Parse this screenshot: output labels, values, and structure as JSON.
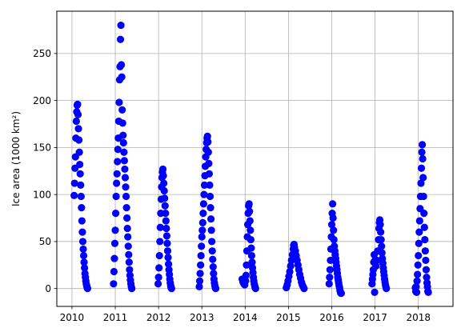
{
  "chart_data": {
    "type": "scatter",
    "ylabel": "Ice area (1000 km²)",
    "xlabel": "",
    "title": "",
    "grid": true,
    "marker_color": "#0000ff",
    "xlim": [
      2009.65,
      2018.8
    ],
    "ylim": [
      -19,
      295
    ],
    "x_ticks": [
      2010,
      2011,
      2012,
      2013,
      2014,
      2015,
      2016,
      2017,
      2018
    ],
    "y_ticks": [
      0,
      50,
      100,
      150,
      200,
      250
    ],
    "seasons": [
      {
        "start": 2010.03,
        "end": 2010.41,
        "points": [
          [
            2010.05,
            99
          ],
          [
            2010.06,
            112
          ],
          [
            2010.07,
            128
          ],
          [
            2010.08,
            140
          ],
          [
            2010.09,
            160
          ],
          [
            2010.1,
            178
          ],
          [
            2010.11,
            188
          ],
          [
            2010.12,
            195
          ],
          [
            2010.13,
            196
          ],
          [
            2010.14,
            185
          ],
          [
            2010.15,
            170
          ],
          [
            2010.16,
            158
          ],
          [
            2010.17,
            145
          ],
          [
            2010.18,
            132
          ],
          [
            2010.19,
            122
          ],
          [
            2010.2,
            110
          ],
          [
            2010.21,
            98
          ],
          [
            2010.22,
            86
          ],
          [
            2010.23,
            72
          ],
          [
            2010.24,
            60
          ],
          [
            2010.25,
            50
          ],
          [
            2010.26,
            42
          ],
          [
            2010.27,
            35
          ],
          [
            2010.28,
            28
          ],
          [
            2010.29,
            22
          ],
          [
            2010.3,
            16
          ],
          [
            2010.31,
            12
          ],
          [
            2010.32,
            8
          ],
          [
            2010.33,
            5
          ],
          [
            2010.34,
            3
          ],
          [
            2010.35,
            1
          ],
          [
            2010.36,
            0
          ]
        ]
      },
      {
        "start": 2010.95,
        "end": 2011.42,
        "points": [
          [
            2010.96,
            5
          ],
          [
            2010.97,
            18
          ],
          [
            2010.98,
            32
          ],
          [
            2010.99,
            48
          ],
          [
            2011.0,
            62
          ],
          [
            2011.01,
            80
          ],
          [
            2011.02,
            98
          ],
          [
            2011.03,
            112
          ],
          [
            2011.04,
            122
          ],
          [
            2011.05,
            135
          ],
          [
            2011.06,
            148
          ],
          [
            2011.07,
            160
          ],
          [
            2011.08,
            178
          ],
          [
            2011.09,
            198
          ],
          [
            2011.1,
            222
          ],
          [
            2011.11,
            236
          ],
          [
            2011.12,
            265
          ],
          [
            2011.13,
            280
          ],
          [
            2011.14,
            238
          ],
          [
            2011.15,
            225
          ],
          [
            2011.16,
            190
          ],
          [
            2011.17,
            176
          ],
          [
            2011.18,
            163
          ],
          [
            2011.19,
            155
          ],
          [
            2011.2,
            145
          ],
          [
            2011.21,
            136
          ],
          [
            2011.22,
            127
          ],
          [
            2011.23,
            118
          ],
          [
            2011.24,
            108
          ],
          [
            2011.25,
            98
          ],
          [
            2011.26,
            86
          ],
          [
            2011.27,
            75
          ],
          [
            2011.28,
            64
          ],
          [
            2011.29,
            55
          ],
          [
            2011.3,
            45
          ],
          [
            2011.31,
            36
          ],
          [
            2011.32,
            28
          ],
          [
            2011.33,
            20
          ],
          [
            2011.34,
            14
          ],
          [
            2011.35,
            9
          ],
          [
            2011.36,
            5
          ],
          [
            2011.37,
            2
          ],
          [
            2011.38,
            0
          ]
        ]
      },
      {
        "start": 2011.98,
        "end": 2012.4,
        "points": [
          [
            2011.99,
            5
          ],
          [
            2012.0,
            12
          ],
          [
            2012.01,
            22
          ],
          [
            2012.02,
            35
          ],
          [
            2012.03,
            50
          ],
          [
            2012.04,
            65
          ],
          [
            2012.05,
            80
          ],
          [
            2012.06,
            95
          ],
          [
            2012.07,
            108
          ],
          [
            2012.08,
            118
          ],
          [
            2012.09,
            124
          ],
          [
            2012.1,
            127
          ],
          [
            2012.11,
            120
          ],
          [
            2012.12,
            112
          ],
          [
            2012.13,
            104
          ],
          [
            2012.14,
            96
          ],
          [
            2012.15,
            88
          ],
          [
            2012.16,
            80
          ],
          [
            2012.17,
            72
          ],
          [
            2012.18,
            64
          ],
          [
            2012.19,
            56
          ],
          [
            2012.2,
            48
          ],
          [
            2012.21,
            40
          ],
          [
            2012.22,
            33
          ],
          [
            2012.23,
            26
          ],
          [
            2012.24,
            20
          ],
          [
            2012.25,
            15
          ],
          [
            2012.26,
            10
          ],
          [
            2012.27,
            6
          ],
          [
            2012.28,
            3
          ],
          [
            2012.29,
            1
          ],
          [
            2012.3,
            0
          ]
        ]
      },
      {
        "start": 2012.93,
        "end": 2013.44,
        "points": [
          [
            2012.94,
            2
          ],
          [
            2012.95,
            8
          ],
          [
            2012.96,
            16
          ],
          [
            2012.97,
            25
          ],
          [
            2012.98,
            35
          ],
          [
            2012.99,
            45
          ],
          [
            2013.0,
            55
          ],
          [
            2013.01,
            62
          ],
          [
            2013.02,
            70
          ],
          [
            2013.03,
            80
          ],
          [
            2013.04,
            90
          ],
          [
            2013.05,
            100
          ],
          [
            2013.06,
            110
          ],
          [
            2013.07,
            120
          ],
          [
            2013.08,
            130
          ],
          [
            2013.09,
            140
          ],
          [
            2013.1,
            148
          ],
          [
            2013.11,
            155
          ],
          [
            2013.12,
            160
          ],
          [
            2013.13,
            162
          ],
          [
            2013.14,
            156
          ],
          [
            2013.15,
            145
          ],
          [
            2013.16,
            133
          ],
          [
            2013.17,
            122
          ],
          [
            2013.18,
            110
          ],
          [
            2013.19,
            98
          ],
          [
            2013.2,
            86
          ],
          [
            2013.21,
            74
          ],
          [
            2013.22,
            62
          ],
          [
            2013.23,
            50
          ],
          [
            2013.24,
            40
          ],
          [
            2013.25,
            31
          ],
          [
            2013.26,
            23
          ],
          [
            2013.27,
            16
          ],
          [
            2013.28,
            10
          ],
          [
            2013.29,
            6
          ],
          [
            2013.3,
            3
          ],
          [
            2013.31,
            1
          ],
          [
            2013.32,
            0
          ]
        ]
      },
      {
        "start": 2013.92,
        "end": 2014.42,
        "points": [
          [
            2013.93,
            10
          ],
          [
            2013.95,
            7
          ],
          [
            2013.97,
            5
          ],
          [
            2013.99,
            4
          ],
          [
            2014.01,
            8
          ],
          [
            2014.02,
            14
          ],
          [
            2014.03,
            25
          ],
          [
            2014.04,
            40
          ],
          [
            2014.05,
            55
          ],
          [
            2014.06,
            68
          ],
          [
            2014.07,
            80
          ],
          [
            2014.08,
            88
          ],
          [
            2014.09,
            90
          ],
          [
            2014.1,
            82
          ],
          [
            2014.11,
            72
          ],
          [
            2014.12,
            62
          ],
          [
            2014.13,
            52
          ],
          [
            2014.14,
            43
          ],
          [
            2014.15,
            35
          ],
          [
            2014.16,
            28
          ],
          [
            2014.17,
            22
          ],
          [
            2014.18,
            17
          ],
          [
            2014.19,
            12
          ],
          [
            2014.2,
            8
          ],
          [
            2014.21,
            5
          ],
          [
            2014.22,
            3
          ],
          [
            2014.23,
            1
          ],
          [
            2014.24,
            0
          ]
        ]
      },
      {
        "start": 2014.93,
        "end": 2015.4,
        "points": [
          [
            2014.95,
            1
          ],
          [
            2014.97,
            4
          ],
          [
            2014.99,
            8
          ],
          [
            2015.01,
            13
          ],
          [
            2015.03,
            18
          ],
          [
            2015.05,
            24
          ],
          [
            2015.07,
            30
          ],
          [
            2015.09,
            36
          ],
          [
            2015.11,
            42
          ],
          [
            2015.12,
            46
          ],
          [
            2015.13,
            47
          ],
          [
            2015.14,
            44
          ],
          [
            2015.16,
            40
          ],
          [
            2015.18,
            35
          ],
          [
            2015.2,
            30
          ],
          [
            2015.22,
            25
          ],
          [
            2015.24,
            20
          ],
          [
            2015.26,
            15
          ],
          [
            2015.28,
            11
          ],
          [
            2015.3,
            7
          ],
          [
            2015.32,
            4
          ],
          [
            2015.34,
            2
          ],
          [
            2015.36,
            0
          ]
        ]
      },
      {
        "start": 2015.93,
        "end": 2016.4,
        "points": [
          [
            2015.94,
            5
          ],
          [
            2015.95,
            12
          ],
          [
            2015.96,
            20
          ],
          [
            2015.97,
            30
          ],
          [
            2015.98,
            42
          ],
          [
            2015.99,
            55
          ],
          [
            2016.0,
            68
          ],
          [
            2016.01,
            80
          ],
          [
            2016.02,
            90
          ],
          [
            2016.03,
            75
          ],
          [
            2016.04,
            62
          ],
          [
            2016.05,
            52
          ],
          [
            2016.06,
            45
          ],
          [
            2016.07,
            40
          ],
          [
            2016.08,
            36
          ],
          [
            2016.09,
            32
          ],
          [
            2016.1,
            28
          ],
          [
            2016.11,
            24
          ],
          [
            2016.12,
            20
          ],
          [
            2016.13,
            16
          ],
          [
            2016.14,
            12
          ],
          [
            2016.15,
            9
          ],
          [
            2016.16,
            6
          ],
          [
            2016.17,
            3
          ],
          [
            2016.18,
            1
          ],
          [
            2016.19,
            -2
          ],
          [
            2016.2,
            -4
          ],
          [
            2016.21,
            -5
          ],
          [
            2016.22,
            -5
          ]
        ]
      },
      {
        "start": 2016.92,
        "end": 2017.42,
        "points": [
          [
            2016.93,
            5
          ],
          [
            2016.94,
            10
          ],
          [
            2016.95,
            15
          ],
          [
            2016.96,
            20
          ],
          [
            2016.97,
            28
          ],
          [
            2016.98,
            36
          ],
          [
            2016.99,
            -4
          ],
          [
            2017.0,
            30
          ],
          [
            2017.02,
            24
          ],
          [
            2017.04,
            30
          ],
          [
            2017.06,
            40
          ],
          [
            2017.08,
            52
          ],
          [
            2017.09,
            64
          ],
          [
            2017.1,
            70
          ],
          [
            2017.11,
            73
          ],
          [
            2017.12,
            68
          ],
          [
            2017.13,
            60
          ],
          [
            2017.14,
            52
          ],
          [
            2017.15,
            45
          ],
          [
            2017.16,
            38
          ],
          [
            2017.17,
            32
          ],
          [
            2017.18,
            27
          ],
          [
            2017.19,
            22
          ],
          [
            2017.2,
            18
          ],
          [
            2017.21,
            14
          ],
          [
            2017.22,
            10
          ],
          [
            2017.23,
            7
          ],
          [
            2017.24,
            4
          ],
          [
            2017.25,
            2
          ],
          [
            2017.26,
            0
          ]
        ]
      },
      {
        "start": 2017.92,
        "end": 2018.42,
        "points": [
          [
            2017.93,
            1
          ],
          [
            2017.94,
            -3
          ],
          [
            2017.95,
            2
          ],
          [
            2017.96,
            -4
          ],
          [
            2017.97,
            8
          ],
          [
            2017.98,
            15
          ],
          [
            2017.99,
            25
          ],
          [
            2018.0,
            35
          ],
          [
            2018.01,
            48
          ],
          [
            2018.02,
            60
          ],
          [
            2018.03,
            72
          ],
          [
            2018.04,
            85
          ],
          [
            2018.05,
            98
          ],
          [
            2018.06,
            112
          ],
          [
            2018.07,
            128
          ],
          [
            2018.08,
            145
          ],
          [
            2018.09,
            153
          ],
          [
            2018.1,
            138
          ],
          [
            2018.11,
            118
          ],
          [
            2018.12,
            98
          ],
          [
            2018.13,
            80
          ],
          [
            2018.14,
            65
          ],
          [
            2018.15,
            52
          ],
          [
            2018.16,
            40
          ],
          [
            2018.17,
            30
          ],
          [
            2018.18,
            20
          ],
          [
            2018.19,
            12
          ],
          [
            2018.2,
            6
          ],
          [
            2018.21,
            2
          ],
          [
            2018.22,
            -3
          ],
          [
            2018.23,
            -4
          ]
        ]
      }
    ]
  }
}
